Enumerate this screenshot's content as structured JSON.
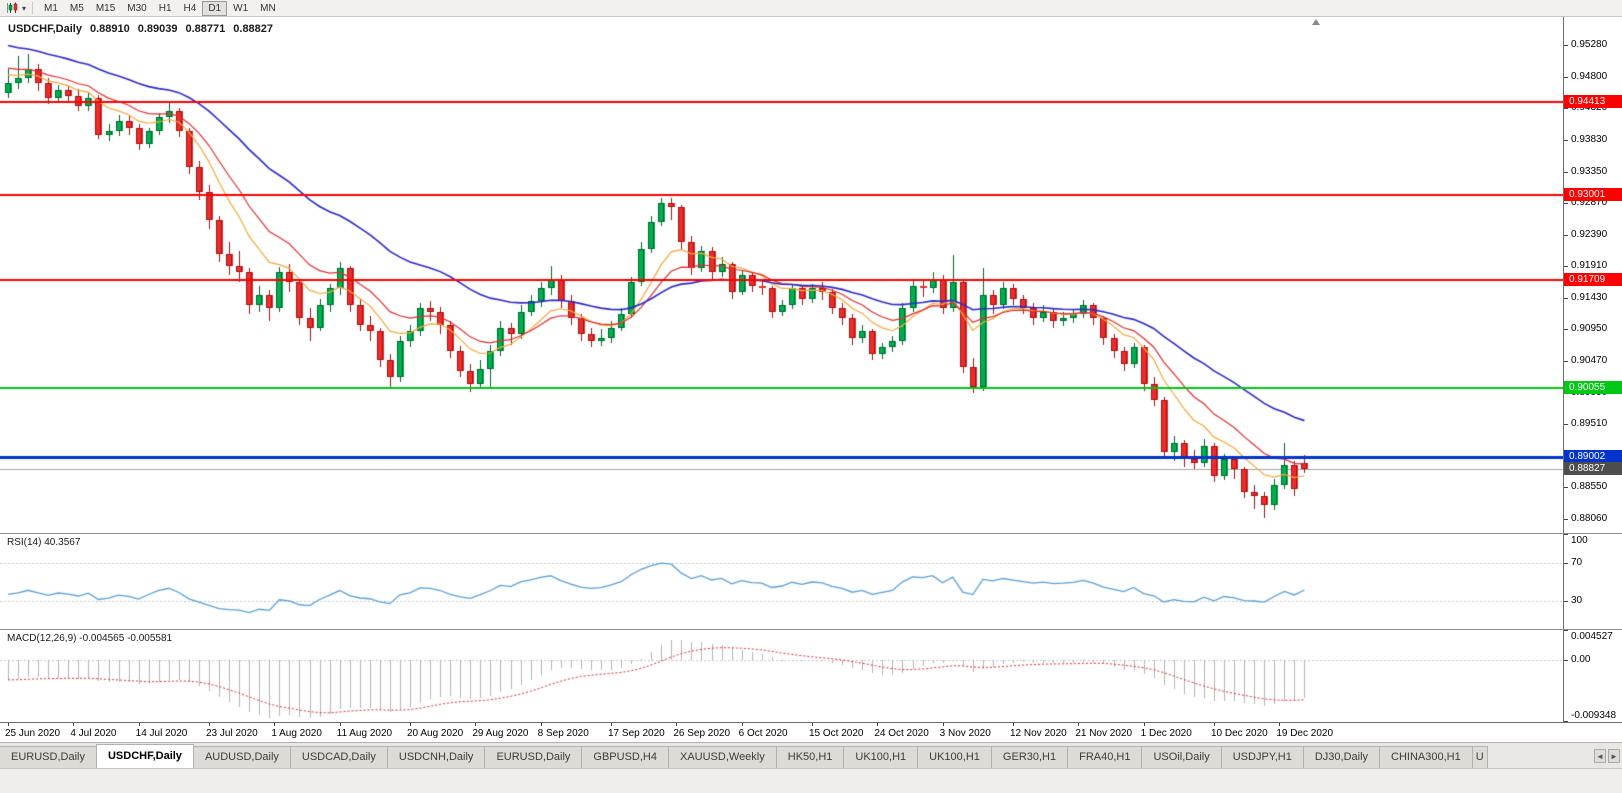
{
  "toolbar": {
    "chart_icon": "candlestick-chart-icon",
    "dropdown_glyph": "▾",
    "timeframes": [
      "M1",
      "M5",
      "M15",
      "M30",
      "H1",
      "H4",
      "D1",
      "W1",
      "MN"
    ],
    "active_timeframe": "D1"
  },
  "chart": {
    "title": {
      "symbol_period": "USDCHF,Daily",
      "open": "0.88910",
      "high": "0.89039",
      "low": "0.88771",
      "close": "0.88827"
    },
    "price_axis": {
      "min": 0.8785,
      "max": 0.9571,
      "labels": [
        "0.95280",
        "0.94800",
        "0.94320",
        "0.93830",
        "0.93350",
        "0.92870",
        "0.92390",
        "0.91910",
        "0.91430",
        "0.90950",
        "0.90470",
        "0.89990",
        "0.89510",
        "0.89030",
        "0.88550",
        "0.88060"
      ]
    },
    "bid": {
      "price": 0.88827,
      "label": "0.88827",
      "tag_color": "#4D4D4D",
      "line_color": "#A6A6A6"
    },
    "hlines": [
      {
        "price": 0.94413,
        "label": "0.94413",
        "color": "#FF0000",
        "width": 2
      },
      {
        "price": 0.93001,
        "label": "0.93001",
        "color": "#FF0000",
        "width": 2
      },
      {
        "price": 0.91709,
        "label": "0.91709",
        "color": "#FF0000",
        "width": 2
      },
      {
        "price": 0.90055,
        "label": "0.90055",
        "color": "#00C814",
        "width": 2
      },
      {
        "price": 0.89002,
        "label": "0.89002",
        "color": "#0033CC",
        "width": 3
      }
    ]
  },
  "chart_data": {
    "type": "candlestick",
    "symbol": "USDCHF",
    "period": "Daily",
    "up_color": "#00B050",
    "up_edge": "#00662C",
    "down_color": "#EE2C2C",
    "down_edge": "#A01414",
    "x_labels": [
      {
        "t": "25 Jun 2020",
        "i": 0
      },
      {
        "t": "4 Jul 2020",
        "i": 6.5
      },
      {
        "t": "14 Jul 2020",
        "i": 13
      },
      {
        "t": "23 Jul 2020",
        "i": 20
      },
      {
        "t": "1 Aug 2020",
        "i": 26.5
      },
      {
        "t": "11 Aug 2020",
        "i": 33
      },
      {
        "t": "20 Aug 2020",
        "i": 40
      },
      {
        "t": "29 Aug 2020",
        "i": 46.5
      },
      {
        "t": "8 Sep 2020",
        "i": 53
      },
      {
        "t": "17 Sep 2020",
        "i": 60
      },
      {
        "t": "26 Sep 2020",
        "i": 66.5
      },
      {
        "t": "6 Oct 2020",
        "i": 73
      },
      {
        "t": "15 Oct 2020",
        "i": 80
      },
      {
        "t": "24 Oct 2020",
        "i": 86.5
      },
      {
        "t": "3 Nov 2020",
        "i": 93
      },
      {
        "t": "12 Nov 2020",
        "i": 100
      },
      {
        "t": "21 Nov 2020",
        "i": 106.5
      },
      {
        "t": "1 Dec 2020",
        "i": 113
      },
      {
        "t": "10 Dec 2020",
        "i": 120
      },
      {
        "t": "19 Dec 2020",
        "i": 126.5
      }
    ],
    "pre_closes": [
      0.961,
      0.9596,
      0.9582,
      0.9565,
      0.9612,
      0.959,
      0.9548,
      0.9512,
      0.9448,
      0.943,
      0.9455,
      0.9468,
      0.9508,
      0.9528,
      0.9495,
      0.9478,
      0.9462,
      0.9488,
      0.9502,
      0.9468
    ],
    "candles": [
      [
        0.9455,
        0.9492,
        0.9448,
        0.947
      ],
      [
        0.947,
        0.9512,
        0.9462,
        0.9478
      ],
      [
        0.9478,
        0.9515,
        0.947,
        0.9492
      ],
      [
        0.9492,
        0.95,
        0.9458,
        0.947
      ],
      [
        0.947,
        0.9478,
        0.9438,
        0.9448
      ],
      [
        0.9448,
        0.9468,
        0.944,
        0.946
      ],
      [
        0.946,
        0.9466,
        0.9442,
        0.945
      ],
      [
        0.945,
        0.9462,
        0.9428,
        0.9435
      ],
      [
        0.9435,
        0.9455,
        0.9428,
        0.9448
      ],
      [
        0.9448,
        0.9452,
        0.9385,
        0.9392
      ],
      [
        0.9392,
        0.9408,
        0.9382,
        0.9398
      ],
      [
        0.9398,
        0.9422,
        0.939,
        0.9412
      ],
      [
        0.9412,
        0.942,
        0.9392,
        0.9402
      ],
      [
        0.9402,
        0.9408,
        0.9368,
        0.9378
      ],
      [
        0.9378,
        0.9402,
        0.9372,
        0.9398
      ],
      [
        0.9398,
        0.9425,
        0.9392,
        0.9418
      ],
      [
        0.9418,
        0.944,
        0.941,
        0.9428
      ],
      [
        0.9428,
        0.9432,
        0.9388,
        0.9398
      ],
      [
        0.9398,
        0.9402,
        0.9332,
        0.9342
      ],
      [
        0.9342,
        0.9352,
        0.9292,
        0.9305
      ],
      [
        0.9305,
        0.9315,
        0.9248,
        0.9262
      ],
      [
        0.9262,
        0.9268,
        0.9198,
        0.921
      ],
      [
        0.921,
        0.9228,
        0.9178,
        0.9192
      ],
      [
        0.9192,
        0.9215,
        0.9168,
        0.9182
      ],
      [
        0.9182,
        0.9188,
        0.9118,
        0.9132
      ],
      [
        0.9132,
        0.9162,
        0.9122,
        0.9148
      ],
      [
        0.9148,
        0.9155,
        0.9108,
        0.9128
      ],
      [
        0.9128,
        0.919,
        0.9122,
        0.9182
      ],
      [
        0.9182,
        0.9195,
        0.9152,
        0.9168
      ],
      [
        0.9168,
        0.9172,
        0.9102,
        0.9112
      ],
      [
        0.9112,
        0.9128,
        0.9078,
        0.9098
      ],
      [
        0.9098,
        0.9142,
        0.9092,
        0.9132
      ],
      [
        0.9132,
        0.9165,
        0.9122,
        0.9158
      ],
      [
        0.9158,
        0.9198,
        0.9148,
        0.9188
      ],
      [
        0.9188,
        0.9192,
        0.9122,
        0.9132
      ],
      [
        0.9132,
        0.9142,
        0.9092,
        0.9102
      ],
      [
        0.9102,
        0.9115,
        0.9078,
        0.9092
      ],
      [
        0.9092,
        0.9098,
        0.9038,
        0.9048
      ],
      [
        0.9048,
        0.9058,
        0.9008,
        0.9022
      ],
      [
        0.9022,
        0.9085,
        0.9015,
        0.9078
      ],
      [
        0.9078,
        0.9102,
        0.9068,
        0.9092
      ],
      [
        0.9092,
        0.9135,
        0.9085,
        0.9128
      ],
      [
        0.9128,
        0.9138,
        0.9108,
        0.9122
      ],
      [
        0.9122,
        0.913,
        0.9088,
        0.9102
      ],
      [
        0.9102,
        0.9108,
        0.9052,
        0.9062
      ],
      [
        0.9062,
        0.907,
        0.9022,
        0.9032
      ],
      [
        0.9032,
        0.9042,
        0.9,
        0.9012
      ],
      [
        0.9012,
        0.9048,
        0.9005,
        0.9035
      ],
      [
        0.9035,
        0.9072,
        0.9008,
        0.9062
      ],
      [
        0.9062,
        0.9108,
        0.9055,
        0.9098
      ],
      [
        0.9098,
        0.9105,
        0.9072,
        0.9088
      ],
      [
        0.9088,
        0.9132,
        0.908,
        0.9122
      ],
      [
        0.9122,
        0.9148,
        0.9115,
        0.9138
      ],
      [
        0.9138,
        0.9168,
        0.913,
        0.9158
      ],
      [
        0.9158,
        0.9192,
        0.9148,
        0.9172
      ],
      [
        0.9172,
        0.9178,
        0.9128,
        0.9138
      ],
      [
        0.9138,
        0.9148,
        0.9102,
        0.9112
      ],
      [
        0.9112,
        0.9118,
        0.9078,
        0.9088
      ],
      [
        0.9088,
        0.9098,
        0.9068,
        0.9078
      ],
      [
        0.9078,
        0.9095,
        0.907,
        0.9082
      ],
      [
        0.9082,
        0.9108,
        0.9075,
        0.9098
      ],
      [
        0.9098,
        0.9128,
        0.9092,
        0.9118
      ],
      [
        0.9118,
        0.9175,
        0.9112,
        0.9168
      ],
      [
        0.9168,
        0.9228,
        0.9162,
        0.9218
      ],
      [
        0.9218,
        0.9268,
        0.9212,
        0.9258
      ],
      [
        0.9258,
        0.9296,
        0.9252,
        0.9288
      ],
      [
        0.9288,
        0.9295,
        0.9262,
        0.9282
      ],
      [
        0.9282,
        0.9285,
        0.9218,
        0.9228
      ],
      [
        0.9228,
        0.9238,
        0.9178,
        0.9188
      ],
      [
        0.9188,
        0.9222,
        0.9182,
        0.9215
      ],
      [
        0.9215,
        0.922,
        0.9172,
        0.9182
      ],
      [
        0.9182,
        0.9205,
        0.9175,
        0.9195
      ],
      [
        0.9195,
        0.9198,
        0.9142,
        0.9152
      ],
      [
        0.9152,
        0.9185,
        0.9148,
        0.9178
      ],
      [
        0.9178,
        0.9182,
        0.9152,
        0.9162
      ],
      [
        0.9162,
        0.9172,
        0.9148,
        0.9158
      ],
      [
        0.9158,
        0.9162,
        0.9112,
        0.9122
      ],
      [
        0.9122,
        0.914,
        0.9115,
        0.9132
      ],
      [
        0.9132,
        0.9165,
        0.9126,
        0.9158
      ],
      [
        0.9158,
        0.9163,
        0.9132,
        0.9142
      ],
      [
        0.9142,
        0.9165,
        0.9136,
        0.9158
      ],
      [
        0.9158,
        0.9168,
        0.914,
        0.9152
      ],
      [
        0.9152,
        0.9156,
        0.9118,
        0.9128
      ],
      [
        0.9128,
        0.9135,
        0.9102,
        0.9112
      ],
      [
        0.9112,
        0.9118,
        0.9072,
        0.9082
      ],
      [
        0.9082,
        0.9102,
        0.9075,
        0.9092
      ],
      [
        0.9092,
        0.9096,
        0.9048,
        0.9058
      ],
      [
        0.9058,
        0.9075,
        0.905,
        0.9068
      ],
      [
        0.9068,
        0.9085,
        0.906,
        0.9078
      ],
      [
        0.9078,
        0.9135,
        0.9072,
        0.9128
      ],
      [
        0.9128,
        0.9172,
        0.9122,
        0.9162
      ],
      [
        0.9162,
        0.917,
        0.9145,
        0.9158
      ],
      [
        0.9158,
        0.9182,
        0.915,
        0.9172
      ],
      [
        0.9172,
        0.9178,
        0.9118,
        0.9128
      ],
      [
        0.9128,
        0.9208,
        0.9122,
        0.9168
      ],
      [
        0.9168,
        0.9172,
        0.9028,
        0.9038
      ],
      [
        0.9038,
        0.9052,
        0.8998,
        0.9008
      ],
      [
        0.9008,
        0.9188,
        0.9002,
        0.9148
      ],
      [
        0.9148,
        0.9155,
        0.9118,
        0.9132
      ],
      [
        0.9132,
        0.9168,
        0.9126,
        0.9158
      ],
      [
        0.9158,
        0.9165,
        0.9132,
        0.9142
      ],
      [
        0.9142,
        0.9148,
        0.9118,
        0.9128
      ],
      [
        0.9128,
        0.9135,
        0.9102,
        0.9112
      ],
      [
        0.9112,
        0.9132,
        0.9106,
        0.9122
      ],
      [
        0.9122,
        0.9128,
        0.9098,
        0.9108
      ],
      [
        0.9108,
        0.9122,
        0.91,
        0.9112
      ],
      [
        0.9112,
        0.9126,
        0.9105,
        0.9118
      ],
      [
        0.9118,
        0.914,
        0.9112,
        0.9132
      ],
      [
        0.9132,
        0.9136,
        0.9102,
        0.9112
      ],
      [
        0.9112,
        0.9116,
        0.9072,
        0.9082
      ],
      [
        0.9082,
        0.9088,
        0.9052,
        0.9062
      ],
      [
        0.9062,
        0.9068,
        0.9032,
        0.9042
      ],
      [
        0.9042,
        0.9075,
        0.9036,
        0.9068
      ],
      [
        0.9068,
        0.9072,
        0.9002,
        0.9012
      ],
      [
        0.9012,
        0.9022,
        0.8978,
        0.8988
      ],
      [
        0.8988,
        0.8992,
        0.8898,
        0.8908
      ],
      [
        0.8908,
        0.8932,
        0.8895,
        0.8922
      ],
      [
        0.8922,
        0.8926,
        0.8886,
        0.8898
      ],
      [
        0.8898,
        0.8912,
        0.8882,
        0.8892
      ],
      [
        0.8892,
        0.8928,
        0.8886,
        0.8918
      ],
      [
        0.8918,
        0.8922,
        0.8862,
        0.8872
      ],
      [
        0.8872,
        0.8905,
        0.8866,
        0.8898
      ],
      [
        0.8898,
        0.8902,
        0.8868,
        0.8882
      ],
      [
        0.8882,
        0.8886,
        0.8838,
        0.8848
      ],
      [
        0.8848,
        0.8858,
        0.8822,
        0.8842
      ],
      [
        0.8842,
        0.8848,
        0.8808,
        0.8828
      ],
      [
        0.8828,
        0.8868,
        0.882,
        0.8858
      ],
      [
        0.8858,
        0.8922,
        0.8852,
        0.8888
      ],
      [
        0.8888,
        0.8894,
        0.8842,
        0.8852
      ],
      [
        0.8891,
        0.89039,
        0.88771,
        0.88827
      ]
    ],
    "moving_averages": [
      {
        "name": "ma-fast",
        "period": 8,
        "color": "#F2A93B",
        "width": 1.2
      },
      {
        "name": "ma-medium",
        "period": 13,
        "color": "#E03030",
        "width": 1.2
      },
      {
        "name": "ma-slow",
        "period": 30,
        "color": "#2B2BC8",
        "width": 1.6
      }
    ]
  },
  "rsi": {
    "label": "RSI(14) 40.3567",
    "period": 14,
    "levels": [
      70,
      30
    ],
    "axis": [
      {
        "label": "100",
        "value": 100
      },
      {
        "label": "70",
        "value": 70
      },
      {
        "label": "30",
        "value": 30
      }
    ],
    "color": "#5AA0D8"
  },
  "macd": {
    "label": "MACD(12,26,9) -0.004565 -0.005581",
    "fast": 12,
    "slow": 26,
    "signal": 9,
    "range": [
      -0.009348,
      0.004527
    ],
    "axis": [
      {
        "label": "0.004527",
        "value": 0.004527
      },
      {
        "label": "0.00",
        "value": 0
      },
      {
        "label": "-0.009348",
        "value": -0.009348
      }
    ],
    "hist_color": "#B3B3B3",
    "signal_color": "#E03030"
  },
  "tabs": {
    "items": [
      {
        "label": "EURUSD,Daily",
        "active": false
      },
      {
        "label": "USDCHF,Daily",
        "active": true
      },
      {
        "label": "AUDUSD,Daily",
        "active": false
      },
      {
        "label": "USDCAD,Daily",
        "active": false
      },
      {
        "label": "USDCNH,Daily",
        "active": false
      },
      {
        "label": "EURUSD,Daily",
        "active": false
      },
      {
        "label": "GBPUSD,H4",
        "active": false
      },
      {
        "label": "XAUUSD,Weekly",
        "active": false
      },
      {
        "label": "HK50,H1",
        "active": false
      },
      {
        "label": "UK100,H1",
        "active": false
      },
      {
        "label": "UK100,H1",
        "active": false
      },
      {
        "label": "GER30,H1",
        "active": false
      },
      {
        "label": "FRA40,H1",
        "active": false
      },
      {
        "label": "USOil,Daily",
        "active": false
      },
      {
        "label": "USDJPY,H1",
        "active": false
      },
      {
        "label": "DJ30,Daily",
        "active": false
      },
      {
        "label": "CHINA300,H1",
        "active": false
      },
      {
        "label": "U",
        "active": false,
        "partial": true
      }
    ],
    "arrows": {
      "left": "◄",
      "right": "►"
    }
  }
}
